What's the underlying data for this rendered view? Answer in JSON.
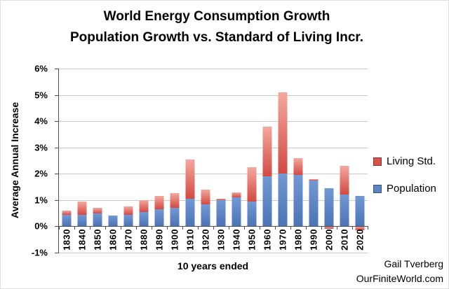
{
  "attribution": {
    "line1": "Gail Tverberg",
    "line2": "OurFiniteWorld.com"
  },
  "chart_data": {
    "type": "bar",
    "stacked": true,
    "title": "World Energy Consumption Growth",
    "subtitle": "Population Growth vs. Standard of Living Incr.",
    "xlabel": "10 years ended",
    "ylabel": "Average Annual Increase",
    "ylim": [
      -1,
      6
    ],
    "yticks": [
      6,
      5,
      4,
      3,
      2,
      1,
      0,
      -1
    ],
    "ytick_suffix": "%",
    "grid": true,
    "categories": [
      "1830",
      "1840",
      "1850",
      "1860",
      "1870",
      "1880",
      "1890",
      "1900",
      "1910",
      "1920",
      "1930",
      "1940",
      "1950",
      "1960",
      "1970",
      "1980",
      "1990",
      "2000",
      "2010",
      "2020"
    ],
    "series": [
      {
        "name": "Population",
        "color": "#5b84c4",
        "values": [
          0.45,
          0.45,
          0.5,
          0.4,
          0.45,
          0.55,
          0.65,
          0.7,
          1.05,
          0.85,
          1.0,
          1.1,
          0.95,
          1.9,
          2.0,
          1.95,
          1.75,
          1.45,
          1.2,
          1.15
        ]
      },
      {
        "name": "Living Std.",
        "color": "#d9534b",
        "values": [
          0.15,
          0.5,
          0.2,
          0.0,
          0.3,
          0.45,
          0.5,
          0.55,
          1.5,
          0.55,
          0.05,
          0.2,
          1.3,
          1.9,
          3.1,
          0.65,
          0.05,
          -0.1,
          1.1,
          -0.15
        ]
      }
    ],
    "legend": {
      "position": "right",
      "items": [
        {
          "label": "Living Std.",
          "color": "#d9534b"
        },
        {
          "label": "Population",
          "color": "#5b84c4"
        }
      ]
    }
  }
}
